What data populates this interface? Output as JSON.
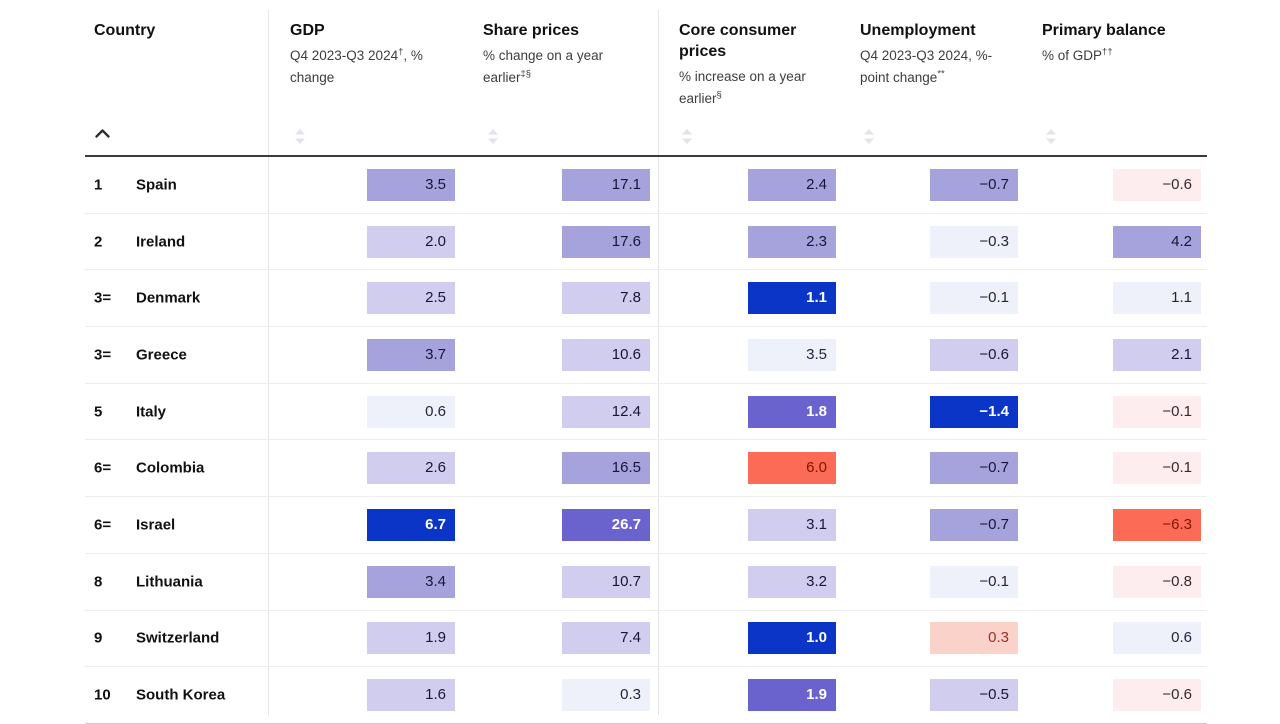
{
  "palette": {
    "blue_strong": {
      "bg": "#0b35c7",
      "fg": "#ffffff"
    },
    "purple_dark": {
      "bg": "#6a63ce",
      "fg": "#ffffff"
    },
    "purple_mid": {
      "bg": "#a6a2dc",
      "fg": "#16163a"
    },
    "purple_light": {
      "bg": "#d0cdee",
      "fg": "#16163a"
    },
    "blue_faint": {
      "bg": "#eef0fa",
      "fg": "#23233c"
    },
    "red_strong": {
      "bg": "#fb6b55",
      "fg": "#7f1500"
    },
    "red_light": {
      "bg": "#fbd2ca",
      "fg": "#993222"
    },
    "red_faint": {
      "bg": "#fdedef",
      "fg": "#342a2c"
    }
  },
  "sort": {
    "active_column": "Country",
    "direction": "ascending"
  },
  "chart_data": {
    "type": "table",
    "columns": [
      {
        "key": "country",
        "title": "Country",
        "subtitle": ""
      },
      {
        "key": "gdp",
        "title": "GDP",
        "subtitle": "Q4 2023-Q3 2024†, % change"
      },
      {
        "key": "share_prices",
        "title": "Share prices",
        "subtitle": "% change on a year earlier‡§"
      },
      {
        "key": "core_prices",
        "title": "Core consumer prices",
        "subtitle": "% increase on a year earlier§"
      },
      {
        "key": "unemployment",
        "title": "Unemployment",
        "subtitle": "Q4 2023-Q3 2024, %-point change**"
      },
      {
        "key": "primary_balance",
        "title": "Primary balance",
        "subtitle": "% of GDP††"
      }
    ],
    "rows": [
      {
        "rank": "1",
        "country": "Spain",
        "cells": [
          {
            "v": "3.5",
            "c": "purple_mid"
          },
          {
            "v": "17.1",
            "c": "purple_mid"
          },
          {
            "v": "2.4",
            "c": "purple_mid"
          },
          {
            "v": "−0.7",
            "c": "purple_mid"
          },
          {
            "v": "−0.6",
            "c": "red_faint"
          }
        ]
      },
      {
        "rank": "2",
        "country": "Ireland",
        "cells": [
          {
            "v": "2.0",
            "c": "purple_light"
          },
          {
            "v": "17.6",
            "c": "purple_mid"
          },
          {
            "v": "2.3",
            "c": "purple_mid"
          },
          {
            "v": "−0.3",
            "c": "blue_faint"
          },
          {
            "v": "4.2",
            "c": "purple_mid"
          }
        ]
      },
      {
        "rank": "3=",
        "country": "Denmark",
        "cells": [
          {
            "v": "2.5",
            "c": "purple_light"
          },
          {
            "v": "7.8",
            "c": "purple_light"
          },
          {
            "v": "1.1",
            "c": "blue_strong"
          },
          {
            "v": "−0.1",
            "c": "blue_faint"
          },
          {
            "v": "1.1",
            "c": "blue_faint"
          }
        ]
      },
      {
        "rank": "3=",
        "country": "Greece",
        "cells": [
          {
            "v": "3.7",
            "c": "purple_mid"
          },
          {
            "v": "10.6",
            "c": "purple_light"
          },
          {
            "v": "3.5",
            "c": "blue_faint"
          },
          {
            "v": "−0.6",
            "c": "purple_light"
          },
          {
            "v": "2.1",
            "c": "purple_light"
          }
        ]
      },
      {
        "rank": "5",
        "country": "Italy",
        "cells": [
          {
            "v": "0.6",
            "c": "blue_faint"
          },
          {
            "v": "12.4",
            "c": "purple_light"
          },
          {
            "v": "1.8",
            "c": "purple_dark"
          },
          {
            "v": "−1.4",
            "c": "blue_strong"
          },
          {
            "v": "−0.1",
            "c": "red_faint"
          }
        ]
      },
      {
        "rank": "6=",
        "country": "Colombia",
        "cells": [
          {
            "v": "2.6",
            "c": "purple_light"
          },
          {
            "v": "16.5",
            "c": "purple_mid"
          },
          {
            "v": "6.0",
            "c": "red_strong"
          },
          {
            "v": "−0.7",
            "c": "purple_mid"
          },
          {
            "v": "−0.1",
            "c": "red_faint"
          }
        ]
      },
      {
        "rank": "6=",
        "country": "Israel",
        "cells": [
          {
            "v": "6.7",
            "c": "blue_strong"
          },
          {
            "v": "26.7",
            "c": "purple_dark"
          },
          {
            "v": "3.1",
            "c": "purple_light"
          },
          {
            "v": "−0.7",
            "c": "purple_mid"
          },
          {
            "v": "−6.3",
            "c": "red_strong"
          }
        ]
      },
      {
        "rank": "8",
        "country": "Lithuania",
        "cells": [
          {
            "v": "3.4",
            "c": "purple_mid"
          },
          {
            "v": "10.7",
            "c": "purple_light"
          },
          {
            "v": "3.2",
            "c": "purple_light"
          },
          {
            "v": "−0.1",
            "c": "blue_faint"
          },
          {
            "v": "−0.8",
            "c": "red_faint"
          }
        ]
      },
      {
        "rank": "9",
        "country": "Switzerland",
        "cells": [
          {
            "v": "1.9",
            "c": "purple_light"
          },
          {
            "v": "7.4",
            "c": "purple_light"
          },
          {
            "v": "1.0",
            "c": "blue_strong"
          },
          {
            "v": "0.3",
            "c": "red_light"
          },
          {
            "v": "0.6",
            "c": "blue_faint"
          }
        ]
      },
      {
        "rank": "10",
        "country": "South Korea",
        "cells": [
          {
            "v": "1.6",
            "c": "purple_light"
          },
          {
            "v": "0.3",
            "c": "blue_faint"
          },
          {
            "v": "1.9",
            "c": "purple_dark"
          },
          {
            "v": "−0.5",
            "c": "purple_light"
          },
          {
            "v": "−0.6",
            "c": "red_faint"
          }
        ]
      }
    ]
  }
}
